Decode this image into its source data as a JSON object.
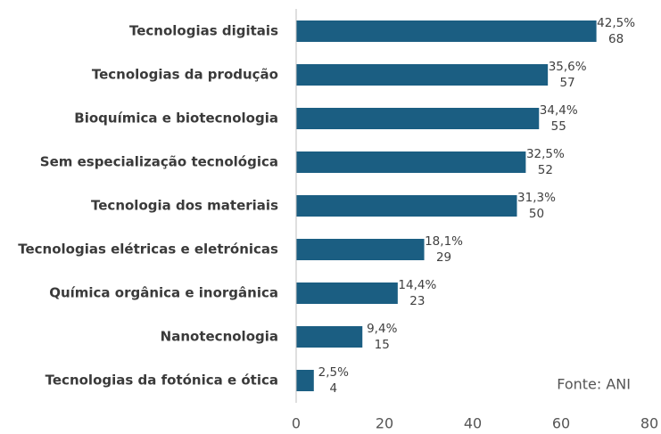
{
  "chart_data": {
    "type": "barh",
    "categories": [
      "Tecnologias digitais",
      "Tecnologias da produção",
      "Bioquímica e biotecnologia",
      "Sem especialização tecnológica",
      "Tecnologia dos materiais",
      "Tecnologias elétricas e eletrónicas",
      "Química orgânica e inorgânica",
      "Nanotecnologia",
      "Tecnologias da fotónica e ótica"
    ],
    "values": [
      68,
      57,
      55,
      52,
      50,
      29,
      23,
      15,
      4
    ],
    "percent_labels": [
      "42,5%",
      "35,6%",
      "34,4%",
      "32,5%",
      "31,3%",
      "18,1%",
      "14,4%",
      "9,4%",
      "2,5%"
    ],
    "color": "#1b5e82",
    "xlim": [
      0,
      80
    ],
    "xticks": [
      0,
      20,
      40,
      60,
      80
    ],
    "grid": false,
    "annotation": "Fonte: ANI"
  }
}
